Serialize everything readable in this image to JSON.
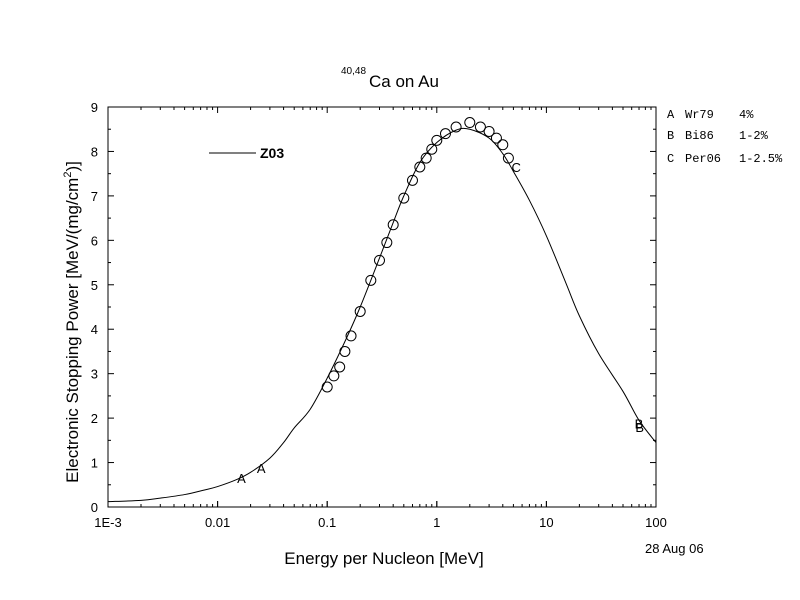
{
  "chart_data": {
    "type": "line",
    "title_sup": "40,48",
    "title_main": "Ca on Au",
    "xlabel": "Energy per Nucleon [MeV]",
    "ylabel_main": "Electronic Stopping Power [MeV/(mg/cm",
    "ylabel_sup": "2",
    "ylabel_end": ")]",
    "x_scale": "log",
    "xlim": [
      0.001,
      100
    ],
    "ylim": [
      0,
      9
    ],
    "x_ticks": [
      {
        "value": 0.001,
        "label": "1E-3"
      },
      {
        "value": 0.01,
        "label": "0.01"
      },
      {
        "value": 0.1,
        "label": "0.1"
      },
      {
        "value": 1,
        "label": "1"
      },
      {
        "value": 10,
        "label": "10"
      },
      {
        "value": 100,
        "label": "100"
      }
    ],
    "y_ticks": [
      {
        "value": 0,
        "label": "0"
      },
      {
        "value": 1,
        "label": "1"
      },
      {
        "value": 2,
        "label": "2"
      },
      {
        "value": 3,
        "label": "3"
      },
      {
        "value": 4,
        "label": "4"
      },
      {
        "value": 5,
        "label": "5"
      },
      {
        "value": 6,
        "label": "6"
      },
      {
        "value": 7,
        "label": "7"
      },
      {
        "value": 8,
        "label": "8"
      },
      {
        "value": 9,
        "label": "9"
      }
    ],
    "grid": false,
    "legend_placement": "top-left inside plot",
    "date_label": "28 Aug 06",
    "series": [
      {
        "name": "Z03",
        "kind": "line",
        "color": "#000000",
        "x": [
          0.001,
          0.002,
          0.003,
          0.005,
          0.0075,
          0.01,
          0.015,
          0.02,
          0.03,
          0.04,
          0.05,
          0.07,
          0.1,
          0.15,
          0.2,
          0.3,
          0.4,
          0.5,
          0.7,
          1.0,
          1.5,
          2.0,
          3.0,
          4.0,
          5.0,
          7.0,
          10,
          15,
          20,
          30,
          50,
          70,
          100
        ],
        "y": [
          0.12,
          0.15,
          0.2,
          0.28,
          0.38,
          0.46,
          0.62,
          0.78,
          1.1,
          1.45,
          1.78,
          2.2,
          2.9,
          3.8,
          4.5,
          5.6,
          6.4,
          7.0,
          7.75,
          8.2,
          8.48,
          8.5,
          8.3,
          7.95,
          7.55,
          6.9,
          6.1,
          5.05,
          4.3,
          3.45,
          2.6,
          1.95,
          1.45
        ]
      },
      {
        "name": "A",
        "kind": "letters",
        "x": [
          0.0165,
          0.025
        ],
        "y": [
          0.65,
          0.88
        ]
      },
      {
        "name": "B",
        "kind": "letters",
        "x": [
          70,
          71
        ],
        "y": [
          1.88,
          1.8
        ]
      },
      {
        "name": "C",
        "kind": "circles",
        "x": [
          0.1,
          0.115,
          0.13,
          0.145,
          0.165,
          0.2,
          0.25,
          0.3,
          0.35,
          0.4,
          0.5,
          0.6,
          0.7,
          0.8,
          0.9,
          1.0,
          1.2,
          1.5,
          2.0,
          2.5,
          3.0,
          3.5,
          4.0,
          4.5
        ],
        "y": [
          2.7,
          2.95,
          3.15,
          3.5,
          3.85,
          4.4,
          5.1,
          5.55,
          5.95,
          6.35,
          6.95,
          7.35,
          7.65,
          7.85,
          8.05,
          8.25,
          8.4,
          8.55,
          8.65,
          8.55,
          8.45,
          8.3,
          8.15,
          7.85
        ]
      },
      {
        "name": "C",
        "kind": "letters",
        "x": [
          5.3
        ],
        "y": [
          7.65
        ]
      }
    ],
    "legend": {
      "line_label": "Z03",
      "refs": [
        {
          "letter": "A",
          "ref": "Wr79",
          "uncertainty": "4%"
        },
        {
          "letter": "B",
          "ref": "Bi86",
          "uncertainty": "1-2%"
        },
        {
          "letter": "C",
          "ref": "Per06",
          "uncertainty": "1-2.5%"
        }
      ]
    }
  }
}
